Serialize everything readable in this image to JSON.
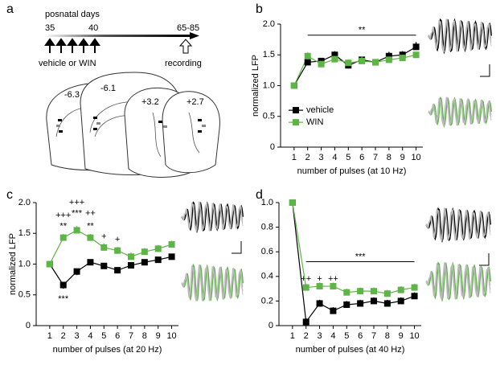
{
  "diagram": {
    "panel": "a",
    "timeline_title": "posnatal days",
    "day_start": "35",
    "day_mid": "40",
    "day_end": "65-85",
    "treatment": "vehicle or WIN",
    "recording": "recording",
    "sections": [
      "-6.3",
      "-6.1",
      "+3.2",
      "+2.7"
    ]
  },
  "chart_data": [
    {
      "type": "line",
      "panel": "b",
      "x_label": "number of pulses (at 10 Hz)",
      "y_label": "normalized LFP",
      "x": [
        1,
        2,
        3,
        4,
        5,
        6,
        7,
        8,
        9,
        10
      ],
      "xlim": [
        0,
        10.5
      ],
      "xticks": [
        1,
        2,
        3,
        4,
        5,
        6,
        7,
        8,
        9,
        10
      ],
      "ylim": [
        0,
        2
      ],
      "yticks": [
        0,
        0.5,
        {
          "value": 1,
          "label": "1.0"
        },
        1.5,
        {
          "value": 2,
          "label": "2.0"
        }
      ],
      "legend": "left",
      "series": [
        {
          "name": "vehicle",
          "color": "#000000",
          "error_side": "up",
          "values": [
            1.0,
            1.38,
            1.4,
            1.5,
            1.33,
            1.42,
            1.38,
            1.48,
            1.5,
            1.63
          ],
          "errors": [
            0,
            0.07,
            0.05,
            0.06,
            0.06,
            0.05,
            0.04,
            0.07,
            0.06,
            0.08
          ]
        },
        {
          "name": "WIN",
          "color": "#5cb545",
          "error_side": "up",
          "values": [
            1.0,
            1.48,
            1.35,
            1.43,
            1.37,
            1.4,
            1.38,
            1.42,
            1.45,
            1.5
          ],
          "errors": [
            0,
            0.06,
            0.05,
            0.05,
            0.05,
            0.08,
            0.04,
            0.05,
            0.05,
            0.05
          ]
        }
      ],
      "brackets": [
        {
          "from": 2,
          "to": 10,
          "y": 1.82,
          "text": "**"
        }
      ],
      "annotations": []
    },
    {
      "type": "line",
      "panel": "c",
      "x_label": "number of pulses (at 20 Hz)",
      "y_label": "normalized LFP",
      "x": [
        1,
        2,
        3,
        4,
        5,
        6,
        7,
        8,
        9,
        10
      ],
      "xlim": [
        0,
        10.5
      ],
      "xticks": [
        1,
        2,
        3,
        4,
        5,
        6,
        7,
        8,
        9,
        10
      ],
      "ylim": [
        0,
        2
      ],
      "yticks": [
        0,
        0.5,
        {
          "value": 1,
          "label": "1.0"
        },
        1.5,
        {
          "value": 2,
          "label": "2.0"
        }
      ],
      "series": [
        {
          "name": "vehicle",
          "color": "#000000",
          "error_side": "down",
          "values": [
            1.0,
            0.66,
            0.88,
            1.03,
            0.97,
            0.9,
            0.98,
            1.03,
            1.07,
            1.12
          ],
          "errors": [
            0,
            0.06,
            0.06,
            0.04,
            0.05,
            0.05,
            0.05,
            0.05,
            0.05,
            0.05
          ]
        },
        {
          "name": "WIN",
          "color": "#5cb545",
          "error_side": "up",
          "values": [
            1.0,
            1.43,
            1.55,
            1.43,
            1.27,
            1.22,
            1.12,
            1.2,
            1.25,
            1.32
          ],
          "errors": [
            0,
            0.06,
            0.07,
            0.06,
            0.07,
            0.06,
            0.07,
            0.06,
            0.06,
            0.06
          ]
        }
      ],
      "brackets": [],
      "annotations": [
        {
          "x": 2,
          "y": 1.79,
          "text": "+++"
        },
        {
          "x": 2,
          "y": 1.61,
          "text": "**"
        },
        {
          "x": 2,
          "y": 0.43,
          "text": "***"
        },
        {
          "x": 3,
          "y": 2.0,
          "text": "+++"
        },
        {
          "x": 3,
          "y": 1.82,
          "text": "***"
        },
        {
          "x": 4,
          "y": 1.82,
          "text": "++"
        },
        {
          "x": 4,
          "y": 1.61,
          "text": "**"
        },
        {
          "x": 5,
          "y": 1.44,
          "text": "+"
        },
        {
          "x": 6,
          "y": 1.4,
          "text": "+"
        }
      ]
    },
    {
      "type": "line",
      "panel": "d",
      "x_label": "number of pulses (at 40 Hz)",
      "x": [
        1,
        2,
        3,
        4,
        5,
        6,
        7,
        8,
        9,
        10
      ],
      "xlim": [
        0,
        10.5
      ],
      "xticks": [
        1,
        2,
        3,
        4,
        5,
        6,
        7,
        8,
        9,
        10
      ],
      "ylim": [
        0,
        1
      ],
      "yticks": [
        0,
        0.2,
        0.4,
        0.6,
        0.8,
        {
          "value": 1,
          "label": "1.0"
        }
      ],
      "series": [
        {
          "name": "vehicle",
          "color": "#000000",
          "error_side": "up",
          "values": [
            1.0,
            0.03,
            0.18,
            0.12,
            0.17,
            0.18,
            0.2,
            0.18,
            0.2,
            0.24
          ],
          "errors": [
            0,
            0.03,
            0.03,
            0.03,
            0.03,
            0.03,
            0.03,
            0.03,
            0.03,
            0.03
          ]
        },
        {
          "name": "WIN",
          "color": "#5cb545",
          "error_side": "up",
          "values": [
            1.0,
            0.31,
            0.32,
            0.32,
            0.27,
            0.28,
            0.28,
            0.26,
            0.29,
            0.31
          ],
          "errors": [
            0,
            0.03,
            0.03,
            0.03,
            0.03,
            0.03,
            0.03,
            0.03,
            0.03,
            0.03
          ]
        }
      ],
      "brackets": [
        {
          "from": 2,
          "to": 10,
          "y": 0.52,
          "text": "***"
        }
      ],
      "annotations": [
        {
          "x": 2,
          "y": 0.38,
          "text": "++"
        },
        {
          "x": 3,
          "y": 0.38,
          "text": "+"
        },
        {
          "x": 4,
          "y": 0.38,
          "text": "++"
        }
      ]
    }
  ]
}
